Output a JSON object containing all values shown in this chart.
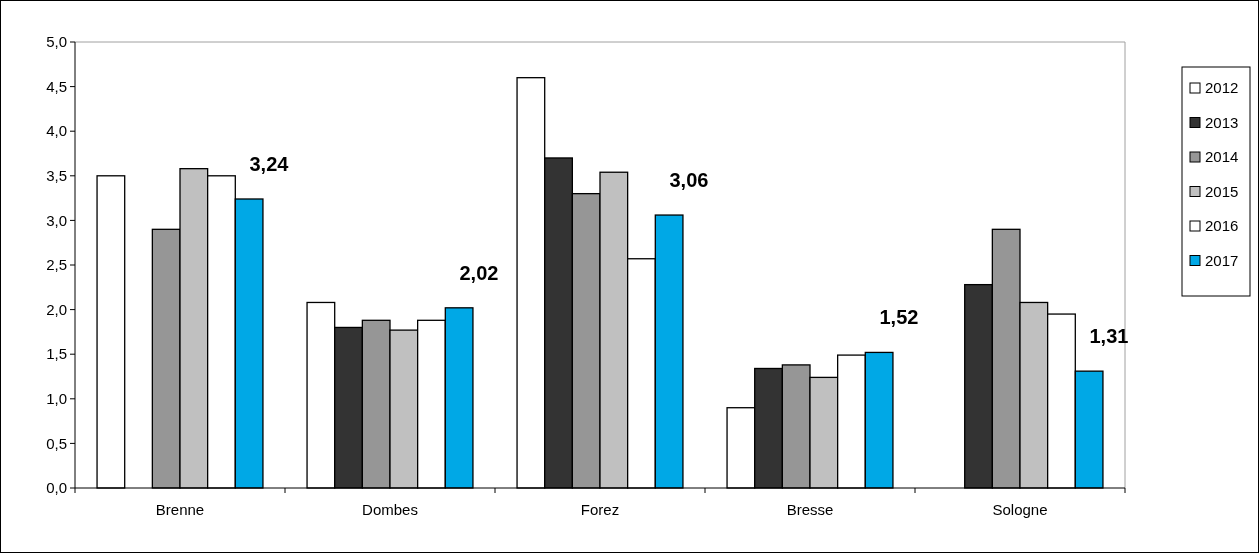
{
  "chart_data": {
    "type": "bar",
    "categories": [
      "Brenne",
      "Dombes",
      "Forez",
      "Bresse",
      "Sologne"
    ],
    "series": [
      {
        "name": "2012",
        "color": "#ffffff",
        "values": [
          3.5,
          2.08,
          4.6,
          0.9,
          null
        ]
      },
      {
        "name": "2013",
        "color": "#333333",
        "values": [
          null,
          1.8,
          3.7,
          1.34,
          2.28
        ]
      },
      {
        "name": "2014",
        "color": "#969696",
        "values": [
          2.9,
          1.88,
          3.3,
          1.38,
          2.9
        ]
      },
      {
        "name": "2015",
        "color": "#c0c0c0",
        "values": [
          3.58,
          1.77,
          3.54,
          1.24,
          2.08
        ]
      },
      {
        "name": "2016",
        "color": "#ffffff",
        "values": [
          3.5,
          1.88,
          2.57,
          1.49,
          1.95
        ]
      },
      {
        "name": "2017",
        "color": "#00a8e6",
        "values": [
          3.24,
          2.02,
          3.06,
          1.52,
          1.31
        ],
        "value_labels": [
          "3,24",
          "2,02",
          "3,06",
          "1,52",
          "1,31"
        ]
      }
    ],
    "ylim": [
      0,
      5
    ],
    "yticks": [
      {
        "value": 0,
        "label": "0,0"
      },
      {
        "value": 0.5,
        "label": "0,5"
      },
      {
        "value": 1,
        "label": "1,0"
      },
      {
        "value": 1.5,
        "label": "1,5"
      },
      {
        "value": 2,
        "label": "2,0"
      },
      {
        "value": 2.5,
        "label": "2,5"
      },
      {
        "value": 3,
        "label": "3,0"
      },
      {
        "value": 3.5,
        "label": "3,5"
      },
      {
        "value": 4,
        "label": "4,0"
      },
      {
        "value": 4.5,
        "label": "4,5"
      },
      {
        "value": 5,
        "label": "5,0"
      }
    ],
    "grid": false,
    "legend": "right"
  }
}
